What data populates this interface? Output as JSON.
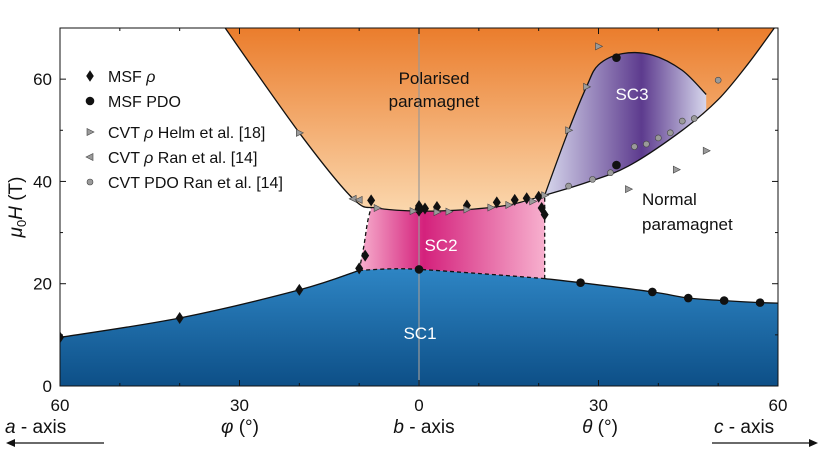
{
  "chart_data": {
    "type": "scatter",
    "ylim": [
      0,
      70
    ],
    "xlim": [
      -60,
      60
    ],
    "y_ticks": [
      "0",
      "20",
      "40",
      "60"
    ],
    "y_tick_values": [
      0,
      20,
      40,
      60
    ],
    "x_ticks": [
      "60",
      "30",
      "0",
      "30",
      "60"
    ],
    "x_tick_values": [
      -60,
      -30,
      0,
      30,
      60
    ],
    "ylabel": {
      "mu": "μ",
      "sub": "0",
      "H": "H",
      "unit": " (T)"
    },
    "phi_label": {
      "sym": "φ",
      "unit": " (°)"
    },
    "theta_label": {
      "sym": "θ",
      "unit": " (°)"
    },
    "a_axis_label": {
      "a": "a",
      "rest": " - axis"
    },
    "b_axis_label": {
      "b": "b",
      "rest": " - axis"
    },
    "c_axis_label": {
      "c": "c",
      "rest": " - axis"
    },
    "legend": [
      {
        "marker": "diamond",
        "label": "MSF ",
        "sym": "ρ",
        "rest": ""
      },
      {
        "marker": "circle",
        "label": "MSF PDO",
        "sym": "",
        "rest": ""
      },
      {
        "marker": "tri-right",
        "label": "CVT ",
        "sym": "ρ",
        "rest": " Helm et al. [18]"
      },
      {
        "marker": "tri-left",
        "label": "CVT ",
        "sym": "ρ",
        "rest": " Ran et al. [14]"
      },
      {
        "marker": "small-circle",
        "label": "CVT PDO Ran et al. [14]",
        "sym": "",
        "rest": ""
      }
    ],
    "regions": {
      "polarised": [
        "Polarised",
        "paramagnet"
      ],
      "normal": [
        "Normal",
        "paramagnet"
      ],
      "sc1": "SC1",
      "sc2": "SC2",
      "sc3": "SC3"
    },
    "colors": {
      "orange_top": "#e8701a",
      "orange_bottom": "#fbd7ad",
      "blue_top": "#2e85c4",
      "blue_bottom": "#0d4f87",
      "pink_center": "#d4217c",
      "pink_edge": "#f7b0ce",
      "purple_center": "#5d3b8e",
      "purple_edge": "#d6d6ec",
      "b_axis_line": "#999999"
    },
    "series": [
      {
        "name": "MSF ρ",
        "marker": "diamond",
        "x": [
          -60,
          -40,
          -20,
          -10,
          -9,
          -8,
          0,
          0,
          0,
          1,
          3,
          8,
          13,
          16,
          18,
          20,
          20.5,
          21
        ],
        "y": [
          9.5,
          13.3,
          18.8,
          23,
          25.5,
          36.3,
          34.8,
          34.3,
          35.2,
          34.7,
          35,
          35.3,
          35.9,
          36.4,
          36.7,
          37,
          34.8,
          33.5
        ]
      },
      {
        "name": "MSF PDO",
        "marker": "circle",
        "x": [
          0,
          0,
          27,
          39,
          45,
          51,
          57,
          33,
          33
        ],
        "y": [
          22.8,
          34.5,
          20.2,
          18.4,
          17.2,
          16.7,
          16.3,
          64.2,
          43.2
        ]
      },
      {
        "name": "CVT ρ Helm et al. [18]",
        "marker": "tri-right",
        "x": [
          -20,
          -7,
          -1,
          3,
          5,
          8,
          12,
          15,
          19,
          21,
          25,
          28,
          30,
          35,
          43,
          48
        ],
        "y": [
          49.5,
          34.8,
          34.2,
          34,
          34.1,
          34.5,
          34.9,
          35.4,
          36.1,
          37.3,
          50,
          58.5,
          66.4,
          38.5,
          42.3,
          46
        ]
      },
      {
        "name": "CVT ρ Ran et al. [14]",
        "marker": "tri-left",
        "x": [
          -11,
          -10
        ],
        "y": [
          36.6,
          36.4
        ]
      },
      {
        "name": "CVT PDO Ran et al. [14]",
        "marker": "small-circle",
        "x": [
          25,
          29,
          32,
          36,
          38,
          40,
          42,
          44,
          46,
          50
        ],
        "y": [
          39.1,
          40.4,
          41.7,
          46.8,
          47.3,
          48.5,
          49.5,
          51.8,
          52.3,
          59.8
        ]
      }
    ]
  }
}
